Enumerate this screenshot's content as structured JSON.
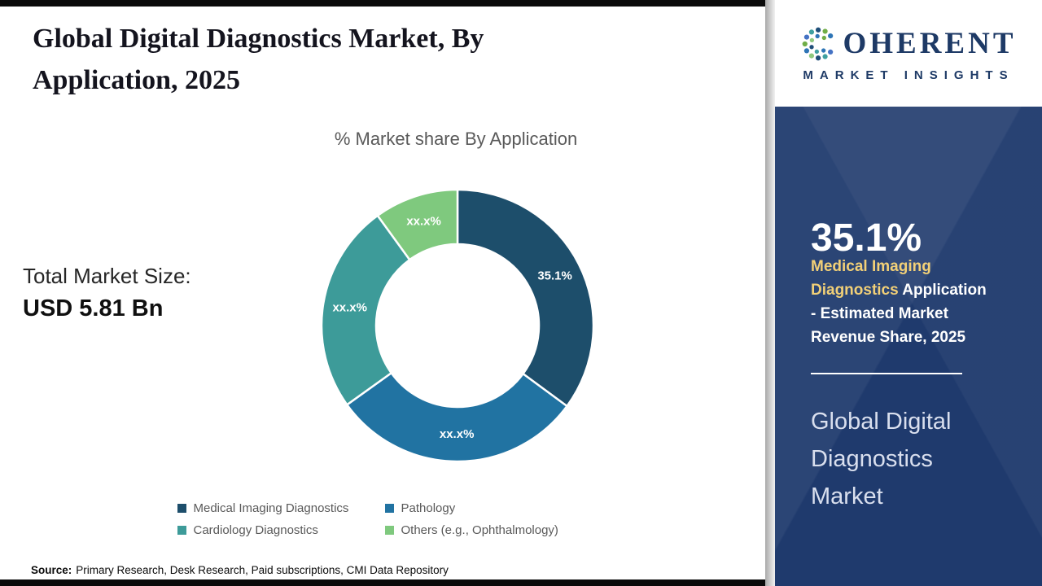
{
  "page": {
    "title": "Global Digital Diagnostics Market, By Application, 2025",
    "source": {
      "label": "Source:",
      "text": "Primary Research, Desk Research, Paid subscriptions, CMI Data Repository"
    },
    "accent_bar_color": "#0a0a0a"
  },
  "stats": {
    "total_market_label": "Total Market Size:",
    "total_market_value": "USD 5.81 Bn"
  },
  "chart_data": {
    "type": "pie",
    "variant": "donut",
    "title": "% Market share By Application",
    "legend_position": "bottom",
    "unit": "%",
    "start_angle_deg": 0,
    "segments": [
      {
        "label": "Medical Imaging Diagnostics",
        "display_value": "35.1%",
        "value": 35.1,
        "color": "#1d4e6b"
      },
      {
        "label": "Pathology",
        "display_value": "xx.x%",
        "value": 30.0,
        "color": "#2173a2"
      },
      {
        "label": "Cardiology Diagnostics",
        "display_value": "xx.x%",
        "value": 24.9,
        "color": "#3d9b99"
      },
      {
        "label": "Others (e.g., Ophthalmology)",
        "display_value": "xx.x%",
        "value": 10.0,
        "color": "#7fc97e"
      }
    ]
  },
  "sidebar": {
    "logo": {
      "brand_initial": "C",
      "brand_rest": "OHERENT",
      "tagline": "MARKET INSIGHTS"
    },
    "stat_value": "35.1%",
    "stat_highlight": "Medical Imaging Diagnostics",
    "stat_description": "Application - Estimated Market Revenue Share, 2025",
    "panel_title": "Global Digital Diagnostics Market",
    "colors": {
      "panel_bg": "#1f3a6d",
      "highlight_text": "#f2d077"
    }
  }
}
